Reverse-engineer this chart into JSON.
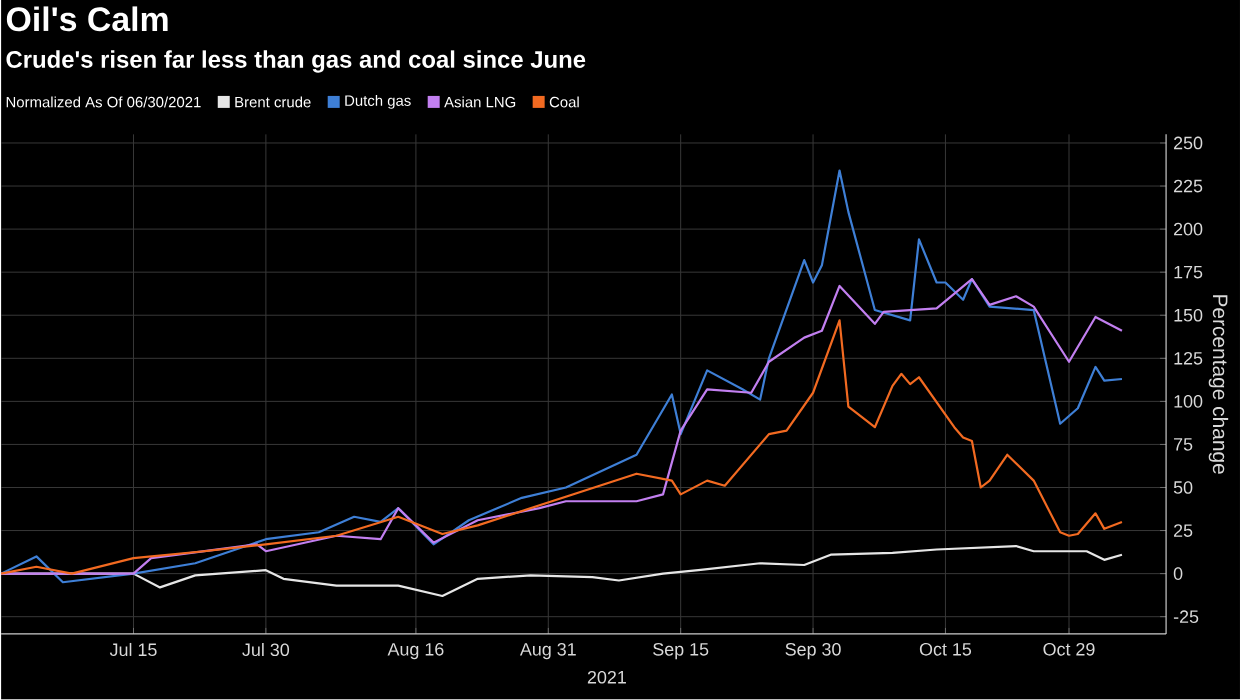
{
  "chart_data": {
    "type": "line",
    "title": "Oil's Calm",
    "subtitle": "Crude's risen far less than gas and coal since June",
    "legend_title": "Normalized As Of 06/30/2021",
    "xlabel": "2021",
    "ylabel": "Percentage change",
    "xlim": [
      "2021-06-30",
      "2021-11-09"
    ],
    "ylim": [
      -35,
      255
    ],
    "xticks": [
      {
        "value": "2021-07-15",
        "label": "Jul 15"
      },
      {
        "value": "2021-07-30",
        "label": "Jul 30"
      },
      {
        "value": "2021-08-16",
        "label": "Aug 16"
      },
      {
        "value": "2021-08-31",
        "label": "Aug 31"
      },
      {
        "value": "2021-09-15",
        "label": "Sep 15"
      },
      {
        "value": "2021-09-30",
        "label": "Sep 30"
      },
      {
        "value": "2021-10-15",
        "label": "Oct 15"
      },
      {
        "value": "2021-10-29",
        "label": "Oct 29"
      }
    ],
    "yticks": [
      -25,
      0,
      25,
      50,
      75,
      100,
      125,
      150,
      175,
      200,
      225,
      250
    ],
    "grid": true,
    "legend": "top left",
    "series": [
      {
        "name": "Brent crude",
        "color": "#e6e6e6",
        "x": [
          "2021-06-30",
          "2021-07-15",
          "2021-07-18",
          "2021-07-22",
          "2021-07-30",
          "2021-08-01",
          "2021-08-07",
          "2021-08-14",
          "2021-08-19",
          "2021-08-23",
          "2021-08-29",
          "2021-09-05",
          "2021-09-08",
          "2021-09-13",
          "2021-09-17",
          "2021-09-24",
          "2021-09-29",
          "2021-10-02",
          "2021-10-09",
          "2021-10-14",
          "2021-10-23",
          "2021-10-25",
          "2021-10-31",
          "2021-11-02",
          "2021-11-04"
        ],
        "values": [
          0,
          0,
          -8,
          -1,
          2,
          -3,
          -7,
          -7,
          -13,
          -3,
          -1,
          -2,
          -4,
          0,
          2,
          6,
          5,
          11,
          12,
          14,
          16,
          13,
          13,
          8,
          11
        ]
      },
      {
        "name": "Dutch gas",
        "color": "#3e7fd6",
        "x": [
          "2021-06-30",
          "2021-07-04",
          "2021-07-07",
          "2021-07-15",
          "2021-07-22",
          "2021-07-30",
          "2021-08-05",
          "2021-08-09",
          "2021-08-12",
          "2021-08-14",
          "2021-08-18",
          "2021-08-22",
          "2021-08-28",
          "2021-09-02",
          "2021-09-10",
          "2021-09-14",
          "2021-09-15",
          "2021-09-18",
          "2021-09-22",
          "2021-09-24",
          "2021-09-25",
          "2021-09-29",
          "2021-09-30",
          "2021-10-01",
          "2021-10-03",
          "2021-10-04",
          "2021-10-07",
          "2021-10-11",
          "2021-10-12",
          "2021-10-14",
          "2021-10-15",
          "2021-10-17",
          "2021-10-18",
          "2021-10-20",
          "2021-10-25",
          "2021-10-28",
          "2021-10-30",
          "2021-11-01",
          "2021-11-02",
          "2021-11-04"
        ],
        "values": [
          0,
          10,
          -5,
          0,
          6,
          20,
          24,
          33,
          30,
          38,
          17,
          31,
          44,
          50,
          69,
          104,
          81,
          118,
          107,
          101,
          125,
          182,
          169,
          179,
          234,
          210,
          153,
          147,
          194,
          169,
          169,
          159,
          171,
          155,
          153,
          87,
          96,
          120,
          112,
          113
        ]
      },
      {
        "name": "Asian LNG",
        "color": "#c27ff0",
        "x": [
          "2021-06-30",
          "2021-07-15",
          "2021-07-17",
          "2021-07-29",
          "2021-07-30",
          "2021-08-07",
          "2021-08-12",
          "2021-08-14",
          "2021-08-18",
          "2021-08-23",
          "2021-08-30",
          "2021-09-02",
          "2021-09-10",
          "2021-09-13",
          "2021-09-15",
          "2021-09-18",
          "2021-09-23",
          "2021-09-25",
          "2021-09-29",
          "2021-10-01",
          "2021-10-03",
          "2021-10-07",
          "2021-10-08",
          "2021-10-14",
          "2021-10-18",
          "2021-10-20",
          "2021-10-23",
          "2021-10-25",
          "2021-10-29",
          "2021-11-01",
          "2021-11-04"
        ],
        "values": [
          0,
          0,
          9,
          17,
          13,
          22,
          20,
          38,
          18,
          31,
          38,
          42,
          42,
          46,
          83,
          107,
          105,
          123,
          137,
          141,
          167,
          145,
          152,
          154,
          171,
          156,
          161,
          155,
          123,
          149,
          141
        ]
      },
      {
        "name": "Coal",
        "color": "#f26a21",
        "x": [
          "2021-06-30",
          "2021-07-04",
          "2021-07-08",
          "2021-07-15",
          "2021-07-23",
          "2021-07-30",
          "2021-08-07",
          "2021-08-14",
          "2021-08-19",
          "2021-08-23",
          "2021-08-29",
          "2021-09-10",
          "2021-09-14",
          "2021-09-15",
          "2021-09-18",
          "2021-09-20",
          "2021-09-25",
          "2021-09-27",
          "2021-09-30",
          "2021-10-03",
          "2021-10-04",
          "2021-10-07",
          "2021-10-09",
          "2021-10-10",
          "2021-10-11",
          "2021-10-12",
          "2021-10-16",
          "2021-10-17",
          "2021-10-18",
          "2021-10-19",
          "2021-10-20",
          "2021-10-22",
          "2021-10-25",
          "2021-10-28",
          "2021-10-29",
          "2021-10-30",
          "2021-11-01",
          "2021-11-02",
          "2021-11-04"
        ],
        "values": [
          0,
          4,
          0,
          9,
          13,
          17,
          22,
          33,
          23,
          28,
          38,
          58,
          54,
          46,
          54,
          51,
          81,
          83,
          105,
          147,
          97,
          85,
          109,
          116,
          110,
          114,
          85,
          79,
          77,
          50,
          54,
          69,
          54,
          24,
          22,
          23,
          35,
          26,
          30
        ]
      }
    ]
  }
}
